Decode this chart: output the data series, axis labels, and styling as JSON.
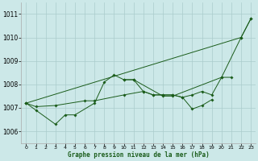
{
  "xlabel": "Graphe pression niveau de la mer (hPa)",
  "ylim": [
    1005.5,
    1011.5
  ],
  "xlim": [
    -0.5,
    23.5
  ],
  "yticks": [
    1006,
    1007,
    1008,
    1009,
    1010,
    1011
  ],
  "xticks": [
    0,
    1,
    2,
    3,
    4,
    5,
    6,
    7,
    8,
    9,
    10,
    11,
    12,
    13,
    14,
    15,
    16,
    17,
    18,
    19,
    20,
    21,
    22,
    23
  ],
  "background_color": "#cce8e8",
  "grid_color": "#aacccc",
  "line_color": "#1a5c1a",
  "series": [
    {
      "x": [
        0,
        1,
        3,
        4,
        5,
        7,
        8,
        9,
        10,
        11,
        14,
        15,
        20,
        22,
        23
      ],
      "y": [
        1007.2,
        1006.9,
        1006.3,
        1006.7,
        1006.7,
        1007.2,
        1008.1,
        1008.4,
        1008.2,
        1008.2,
        1007.5,
        1007.5,
        1008.3,
        1010.0,
        1010.8
      ]
    },
    {
      "x": [
        0,
        1,
        3,
        6,
        7,
        10,
        12,
        13,
        14,
        15,
        16,
        17,
        18,
        19,
        20,
        21
      ],
      "y": [
        1007.2,
        1007.05,
        1007.1,
        1007.3,
        1007.3,
        1007.55,
        1007.7,
        1007.55,
        1007.55,
        1007.55,
        1007.45,
        1007.55,
        1007.7,
        1007.55,
        1008.3,
        1008.3
      ]
    },
    {
      "x": [
        0,
        22,
        23
      ],
      "y": [
        1007.2,
        1010.0,
        1010.8
      ]
    },
    {
      "x": [
        10,
        11,
        12,
        13,
        14,
        15,
        16,
        17,
        18,
        19
      ],
      "y": [
        1008.2,
        1008.2,
        1007.7,
        1007.55,
        1007.55,
        1007.55,
        1007.45,
        1006.95,
        1007.1,
        1007.35
      ]
    }
  ]
}
